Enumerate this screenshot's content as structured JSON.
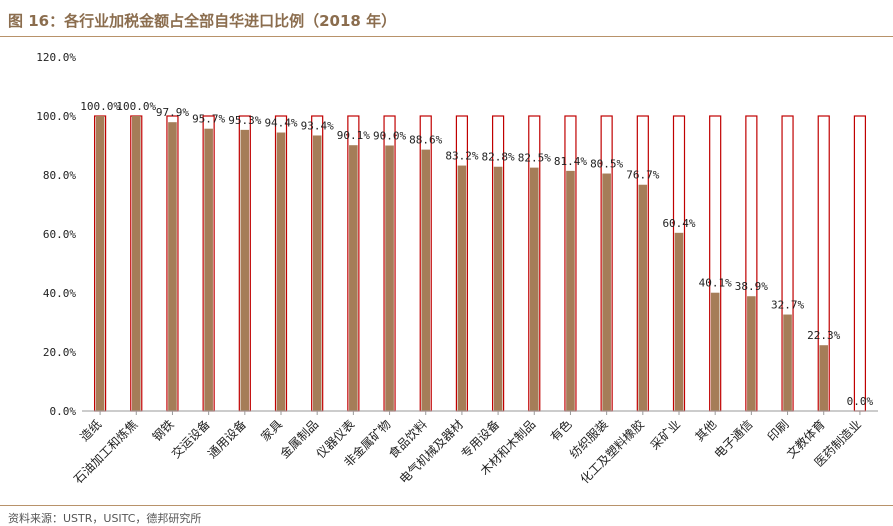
{
  "figure": {
    "title": "图 16：各行业加税金额占全部自华进口比例（2018 年）",
    "source": "资料来源：USTR，USITC，德邦研究所"
  },
  "colors": {
    "bar_fill": "#A57D58",
    "bar_outline": "#C00000",
    "title": "#8B6D4E",
    "rule": "#B8926A"
  },
  "chart_data": {
    "type": "bar",
    "categories": [
      "造纸",
      "石油加工和炼焦",
      "钢铁",
      "交运设备",
      "通用设备",
      "家具",
      "金属制品",
      "仪器仪表",
      "非金属矿物",
      "食品饮料",
      "电气机械及器材",
      "专用设备",
      "木材和木制品",
      "有色",
      "纺织服装",
      "化工及塑料橡胶",
      "采矿业",
      "其他",
      "电子通信",
      "印刷",
      "文教体育",
      "医药制造业"
    ],
    "values": [
      100.0,
      100.0,
      97.9,
      95.7,
      95.3,
      94.4,
      93.4,
      90.1,
      90.0,
      88.6,
      83.2,
      82.8,
      82.5,
      81.4,
      80.5,
      76.7,
      60.4,
      40.1,
      38.9,
      32.7,
      22.3,
      0.0
    ],
    "data_labels": [
      "100.0%",
      "100.0%",
      "97.9%",
      "95.7%",
      "95.3%",
      "94.4%",
      "93.4%",
      "90.1%",
      "90.0%",
      "88.6%",
      "83.2%",
      "82.8%",
      "82.5%",
      "81.4%",
      "80.5%",
      "76.7%",
      "60.4%",
      "40.1%",
      "38.9%",
      "32.7%",
      "22.3%",
      "0.0%"
    ],
    "background_total": 100.0,
    "ylim": [
      0,
      120
    ],
    "yticks": [
      "0.0%",
      "20.0%",
      "40.0%",
      "60.0%",
      "80.0%",
      "100.0%",
      "120.0%"
    ],
    "ytick_values": [
      0,
      20,
      40,
      60,
      80,
      100,
      120
    ],
    "grid": false,
    "legend": "none"
  }
}
